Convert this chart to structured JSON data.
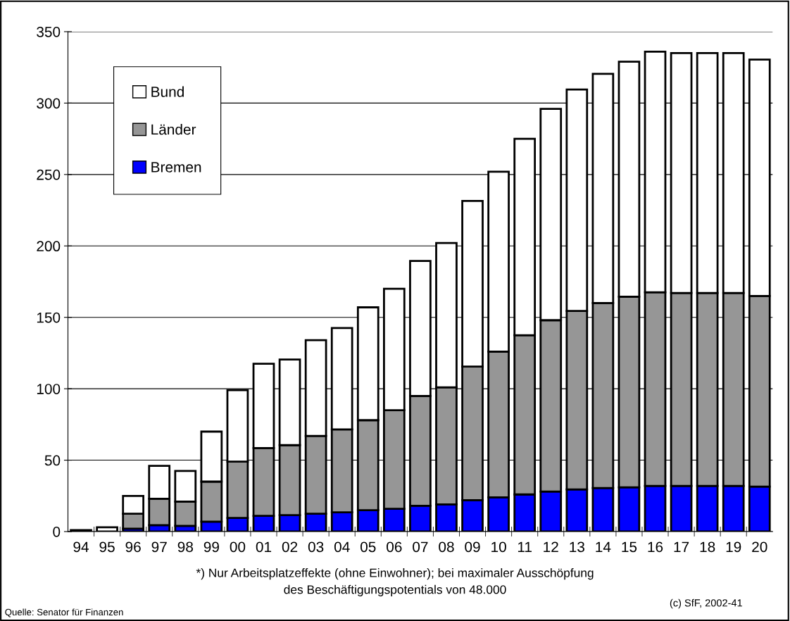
{
  "chart_data": {
    "type": "bar",
    "stacked": true,
    "categories": [
      "94",
      "95",
      "96",
      "97",
      "98",
      "99",
      "00",
      "01",
      "02",
      "03",
      "04",
      "05",
      "06",
      "07",
      "08",
      "09",
      "10",
      "11",
      "12",
      "13",
      "14",
      "15",
      "16",
      "17",
      "18",
      "19",
      "20"
    ],
    "series": [
      {
        "name": "Bremen",
        "color": "#0000ff",
        "values": [
          null,
          null,
          2,
          4.5,
          4,
          7,
          9.5,
          11,
          11.5,
          12.5,
          13.5,
          15,
          16,
          18,
          19,
          22,
          24,
          26,
          28,
          29.5,
          30.5,
          31,
          32,
          32,
          32,
          32,
          31.5
        ]
      },
      {
        "name": "Länder",
        "color": "#969696",
        "values": [
          null,
          null,
          10.5,
          18.5,
          17,
          28,
          39.5,
          47.5,
          49,
          54.5,
          58,
          63,
          69,
          77,
          82,
          93.5,
          102,
          111.5,
          120,
          125,
          129.5,
          133.5,
          135.5,
          135,
          135,
          135,
          133.5
        ]
      },
      {
        "name": "Bund",
        "color": "#ffffff",
        "values": [
          1,
          3,
          12.5,
          23,
          21.5,
          35,
          50,
          59,
          60,
          67,
          71,
          79,
          85,
          94.5,
          101,
          116,
          126,
          137.5,
          148,
          155,
          160.5,
          164.5,
          168.5,
          168,
          168,
          168,
          165.5
        ]
      }
    ],
    "ylim": [
      0,
      350
    ],
    "yticks": [
      0,
      50,
      100,
      150,
      200,
      250,
      300,
      350
    ],
    "grid": "y",
    "legend": "top left",
    "annotations": [
      "*) Nur Arbeitsplatzeffekte (ohne Einwohner); bei maximaler Ausschöpfung\ndes Beschäftigungspotentials von 48.000",
      "Quelle: Senator für Finanzen",
      "(c) SfF, 2002-41"
    ]
  }
}
